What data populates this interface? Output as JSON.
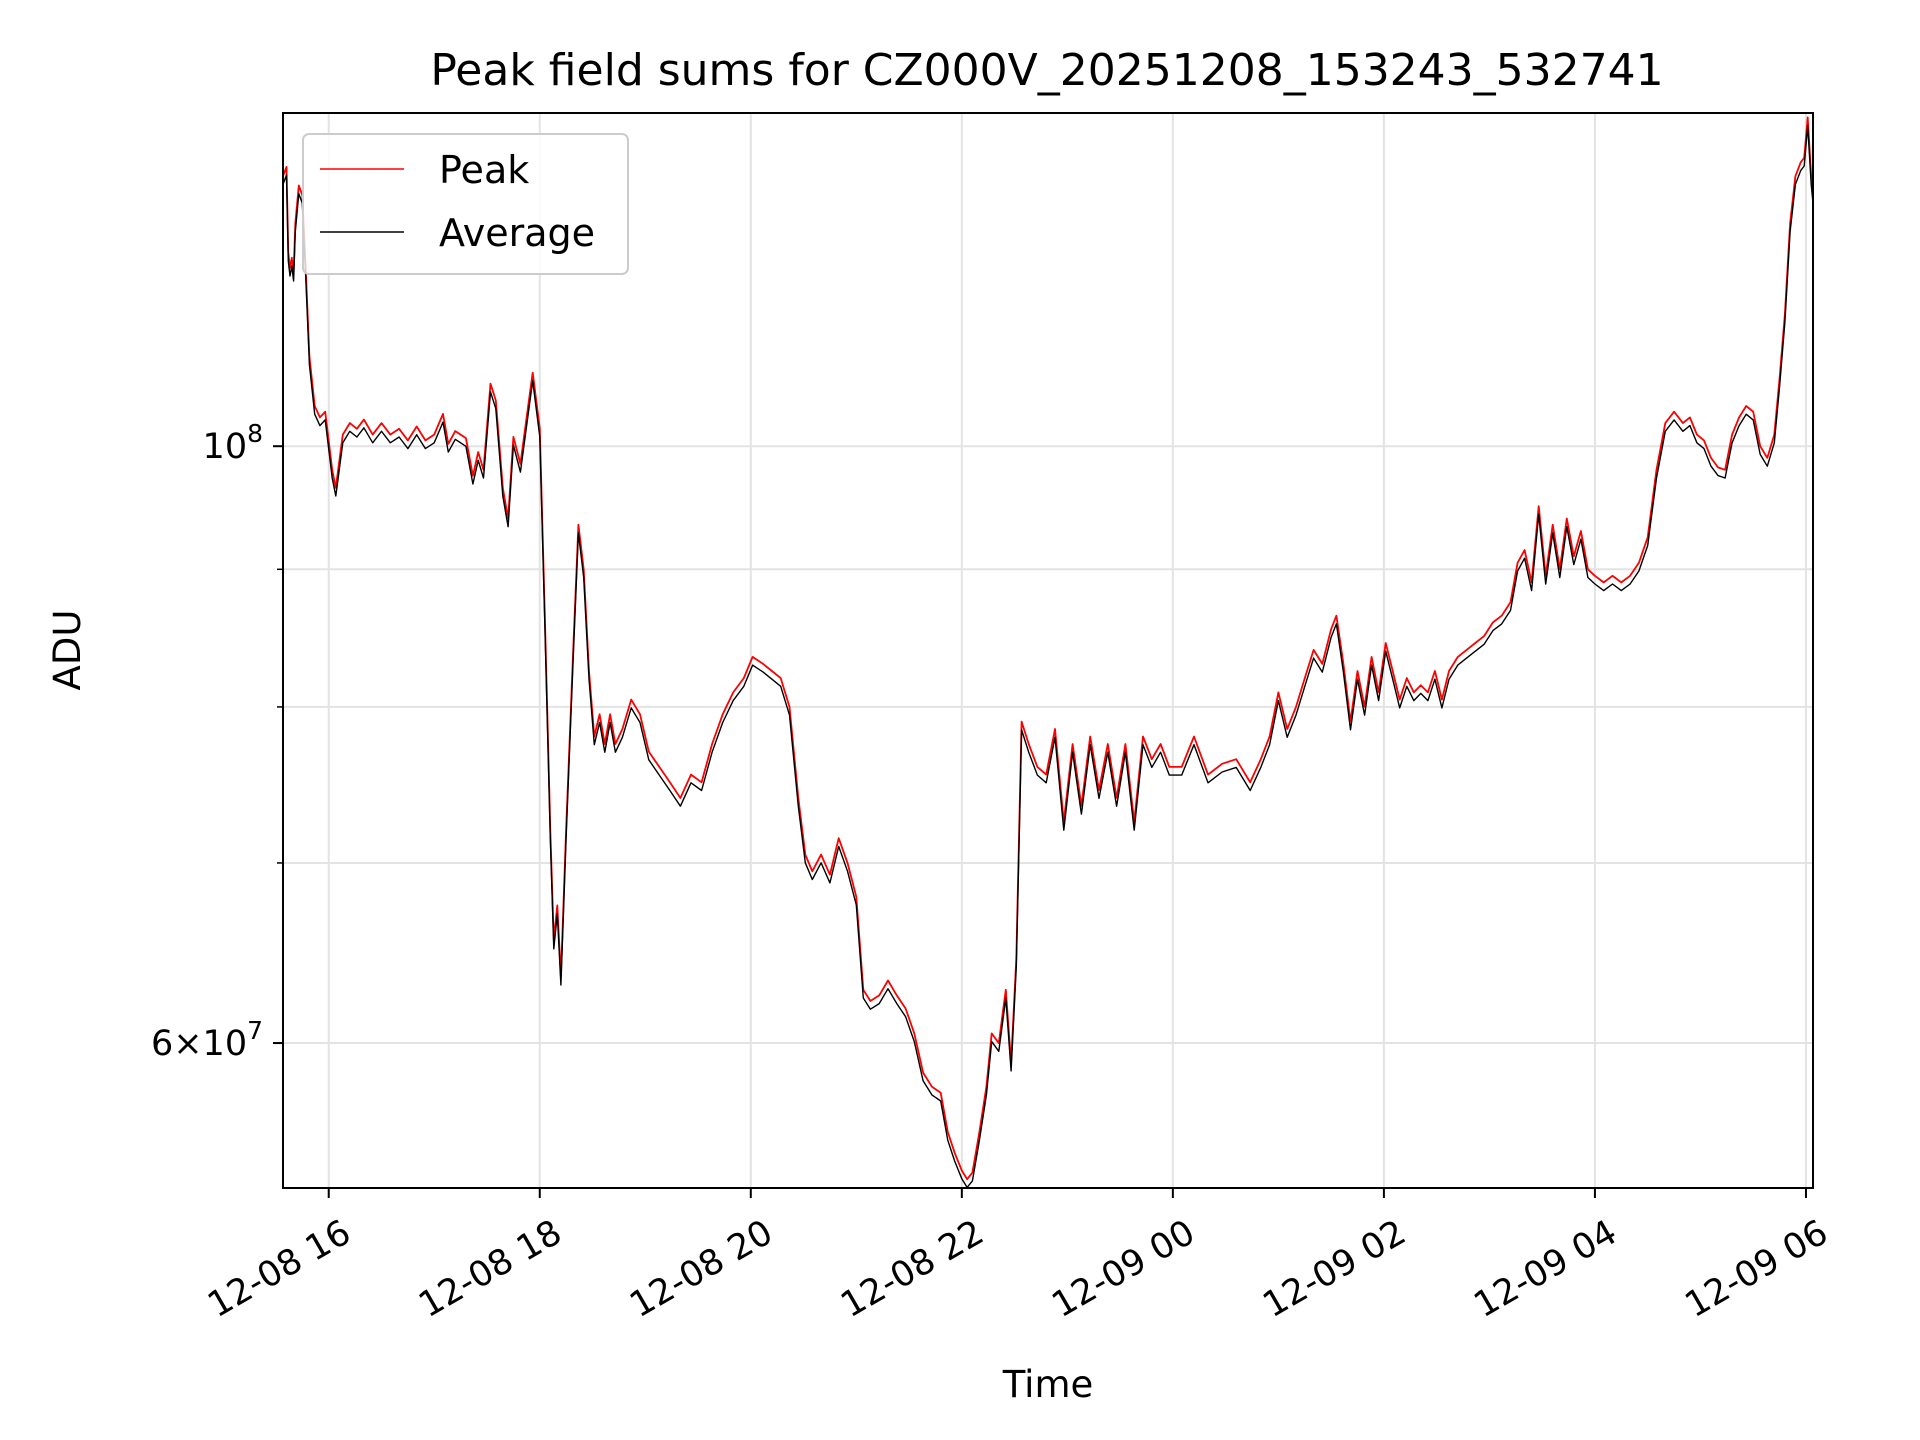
{
  "chart_data": {
    "type": "line",
    "title": "Peak field sums for CZ000V_20251208_153243_532741",
    "xlabel": "Time",
    "ylabel": "ADU",
    "x_scale": "time",
    "y_scale": "log",
    "xlim": [
      "2025-12-08 15:34",
      "2025-12-09 06:04"
    ],
    "ylim": [
      53000000,
      133000000
    ],
    "x_ticks": [
      {
        "value": "2025-12-08 16:00",
        "label": "12-08 16"
      },
      {
        "value": "2025-12-08 18:00",
        "label": "12-08 18"
      },
      {
        "value": "2025-12-08 20:00",
        "label": "12-08 20"
      },
      {
        "value": "2025-12-08 22:00",
        "label": "12-08 22"
      },
      {
        "value": "2025-12-09 00:00",
        "label": "12-09 00"
      },
      {
        "value": "2025-12-09 02:00",
        "label": "12-09 02"
      },
      {
        "value": "2025-12-09 04:00",
        "label": "12-09 04"
      },
      {
        "value": "2025-12-09 06:00",
        "label": "12-09 06"
      }
    ],
    "y_major_ticks": [
      {
        "value": 100000000,
        "base": "10",
        "exp": "8"
      },
      {
        "value": 60000000,
        "mantissa": "6",
        "base": "10",
        "exp": "7"
      }
    ],
    "y_minor_ticks": [
      60000000,
      70000000,
      80000000,
      90000000
    ],
    "grid": true,
    "legend_position": "upper-left",
    "series": [
      {
        "name": "Peak",
        "color": "#ff0000",
        "points": [
          [
            "2025-12-08 15:34",
            126000000
          ],
          [
            "2025-12-08 15:36",
            127000000
          ],
          [
            "2025-12-08 15:37",
            118000000
          ],
          [
            "2025-12-08 15:38",
            116500000
          ],
          [
            "2025-12-08 15:39",
            117500000
          ],
          [
            "2025-12-08 15:40",
            116000000
          ],
          [
            "2025-12-08 15:41",
            121000000
          ],
          [
            "2025-12-08 15:43",
            125000000
          ],
          [
            "2025-12-08 15:45",
            124000000
          ],
          [
            "2025-12-08 15:47",
            116000000
          ],
          [
            "2025-12-08 15:49",
            108000000
          ],
          [
            "2025-12-08 15:52",
            103500000
          ],
          [
            "2025-12-08 15:55",
            102500000
          ],
          [
            "2025-12-08 15:58",
            103000000
          ],
          [
            "2025-12-08 16:02",
            98000000
          ],
          [
            "2025-12-08 16:04",
            96500000
          ],
          [
            "2025-12-08 16:08",
            101000000
          ],
          [
            "2025-12-08 16:12",
            102000000
          ],
          [
            "2025-12-08 16:16",
            101500000
          ],
          [
            "2025-12-08 16:20",
            102300000
          ],
          [
            "2025-12-08 16:25",
            101000000
          ],
          [
            "2025-12-08 16:30",
            102000000
          ],
          [
            "2025-12-08 16:35",
            101000000
          ],
          [
            "2025-12-08 16:40",
            101500000
          ],
          [
            "2025-12-08 16:45",
            100500000
          ],
          [
            "2025-12-08 16:50",
            101700000
          ],
          [
            "2025-12-08 16:55",
            100500000
          ],
          [
            "2025-12-08 17:00",
            101000000
          ],
          [
            "2025-12-08 17:05",
            102800000
          ],
          [
            "2025-12-08 17:08",
            100200000
          ],
          [
            "2025-12-08 17:12",
            101300000
          ],
          [
            "2025-12-08 17:18",
            100700000
          ],
          [
            "2025-12-08 17:22",
            97500000
          ],
          [
            "2025-12-08 17:25",
            99500000
          ],
          [
            "2025-12-08 17:28",
            98000000
          ],
          [
            "2025-12-08 17:32",
            105500000
          ],
          [
            "2025-12-08 17:35",
            104000000
          ],
          [
            "2025-12-08 17:39",
            96500000
          ],
          [
            "2025-12-08 17:42",
            94000000
          ],
          [
            "2025-12-08 17:45",
            100800000
          ],
          [
            "2025-12-08 17:49",
            98500000
          ],
          [
            "2025-12-08 17:53",
            103000000
          ],
          [
            "2025-12-08 17:56",
            106500000
          ],
          [
            "2025-12-08 18:00",
            101500000
          ],
          [
            "2025-12-08 18:03",
            86000000
          ],
          [
            "2025-12-08 18:06",
            72000000
          ],
          [
            "2025-12-08 18:08",
            65500000
          ],
          [
            "2025-12-08 18:10",
            67500000
          ],
          [
            "2025-12-08 18:12",
            63500000
          ],
          [
            "2025-12-08 18:15",
            72000000
          ],
          [
            "2025-12-08 18:19",
            84000000
          ],
          [
            "2025-12-08 18:22",
            93500000
          ],
          [
            "2025-12-08 18:25",
            90000000
          ],
          [
            "2025-12-08 18:28",
            82500000
          ],
          [
            "2025-12-08 18:31",
            78000000
          ],
          [
            "2025-12-08 18:34",
            79500000
          ],
          [
            "2025-12-08 18:37",
            77500000
          ],
          [
            "2025-12-08 18:40",
            79500000
          ],
          [
            "2025-12-08 18:43",
            77500000
          ],
          [
            "2025-12-08 18:47",
            78500000
          ],
          [
            "2025-12-08 18:52",
            80500000
          ],
          [
            "2025-12-08 18:57",
            79500000
          ],
          [
            "2025-12-08 19:02",
            77000000
          ],
          [
            "2025-12-08 19:08",
            76000000
          ],
          [
            "2025-12-08 19:14",
            75000000
          ],
          [
            "2025-12-08 19:20",
            74000000
          ],
          [
            "2025-12-08 19:26",
            75500000
          ],
          [
            "2025-12-08 19:32",
            75000000
          ],
          [
            "2025-12-08 19:38",
            77500000
          ],
          [
            "2025-12-08 19:44",
            79500000
          ],
          [
            "2025-12-08 19:50",
            81000000
          ],
          [
            "2025-12-08 19:56",
            82000000
          ],
          [
            "2025-12-08 20:01",
            83500000
          ],
          [
            "2025-12-08 20:07",
            83000000
          ],
          [
            "2025-12-08 20:12",
            82500000
          ],
          [
            "2025-12-08 20:17",
            82000000
          ],
          [
            "2025-12-08 20:22",
            80000000
          ],
          [
            "2025-12-08 20:27",
            74000000
          ],
          [
            "2025-12-08 20:31",
            70500000
          ],
          [
            "2025-12-08 20:35",
            69500000
          ],
          [
            "2025-12-08 20:40",
            70500000
          ],
          [
            "2025-12-08 20:45",
            69300000
          ],
          [
            "2025-12-08 20:50",
            71500000
          ],
          [
            "2025-12-08 20:55",
            70000000
          ],
          [
            "2025-12-08 21:00",
            68000000
          ],
          [
            "2025-12-08 21:04",
            62800000
          ],
          [
            "2025-12-08 21:08",
            62200000
          ],
          [
            "2025-12-08 21:13",
            62500000
          ],
          [
            "2025-12-08 21:18",
            63300000
          ],
          [
            "2025-12-08 21:23",
            62500000
          ],
          [
            "2025-12-08 21:28",
            61800000
          ],
          [
            "2025-12-08 21:33",
            60500000
          ],
          [
            "2025-12-08 21:38",
            58500000
          ],
          [
            "2025-12-08 21:43",
            57800000
          ],
          [
            "2025-12-08 21:48",
            57500000
          ],
          [
            "2025-12-08 21:52",
            55600000
          ],
          [
            "2025-12-08 21:56",
            54600000
          ],
          [
            "2025-12-08 22:00",
            53800000
          ],
          [
            "2025-12-08 22:03",
            53400000
          ],
          [
            "2025-12-08 22:06",
            53700000
          ],
          [
            "2025-12-08 22:10",
            55600000
          ],
          [
            "2025-12-08 22:14",
            57800000
          ],
          [
            "2025-12-08 22:17",
            60500000
          ],
          [
            "2025-12-08 22:21",
            60000000
          ],
          [
            "2025-12-08 22:25",
            62800000
          ],
          [
            "2025-12-08 22:28",
            59000000
          ],
          [
            "2025-12-08 22:31",
            64500000
          ],
          [
            "2025-12-08 22:34",
            79000000
          ],
          [
            "2025-12-08 22:38",
            77500000
          ],
          [
            "2025-12-08 22:43",
            76000000
          ],
          [
            "2025-12-08 22:48",
            75500000
          ],
          [
            "2025-12-08 22:53",
            78500000
          ],
          [
            "2025-12-08 22:58",
            72500000
          ],
          [
            "2025-12-08 23:03",
            77500000
          ],
          [
            "2025-12-08 23:08",
            73500000
          ],
          [
            "2025-12-08 23:13",
            78000000
          ],
          [
            "2025-12-08 23:18",
            74500000
          ],
          [
            "2025-12-08 23:23",
            77500000
          ],
          [
            "2025-12-08 23:28",
            74000000
          ],
          [
            "2025-12-08 23:33",
            77500000
          ],
          [
            "2025-12-08 23:38",
            72500000
          ],
          [
            "2025-12-08 23:43",
            78000000
          ],
          [
            "2025-12-08 23:48",
            76500000
          ],
          [
            "2025-12-08 23:53",
            77500000
          ],
          [
            "2025-12-08 23:58",
            76000000
          ],
          [
            "2025-12-09 00:05",
            76000000
          ],
          [
            "2025-12-09 00:12",
            78000000
          ],
          [
            "2025-12-09 00:20",
            75500000
          ],
          [
            "2025-12-09 00:28",
            76200000
          ],
          [
            "2025-12-09 00:36",
            76500000
          ],
          [
            "2025-12-09 00:44",
            75000000
          ],
          [
            "2025-12-09 00:50",
            76500000
          ],
          [
            "2025-12-09 00:55",
            78000000
          ],
          [
            "2025-12-09 01:00",
            81000000
          ],
          [
            "2025-12-09 01:05",
            78500000
          ],
          [
            "2025-12-09 01:10",
            80000000
          ],
          [
            "2025-12-09 01:15",
            82000000
          ],
          [
            "2025-12-09 01:20",
            84000000
          ],
          [
            "2025-12-09 01:25",
            83000000
          ],
          [
            "2025-12-09 01:30",
            85500000
          ],
          [
            "2025-12-09 01:33",
            86500000
          ],
          [
            "2025-12-09 01:37",
            83000000
          ],
          [
            "2025-12-09 01:41",
            79000000
          ],
          [
            "2025-12-09 01:45",
            82500000
          ],
          [
            "2025-12-09 01:49",
            80000000
          ],
          [
            "2025-12-09 01:53",
            83500000
          ],
          [
            "2025-12-09 01:57",
            81000000
          ],
          [
            "2025-12-09 02:01",
            84500000
          ],
          [
            "2025-12-09 02:05",
            82500000
          ],
          [
            "2025-12-09 02:09",
            80500000
          ],
          [
            "2025-12-09 02:13",
            82000000
          ],
          [
            "2025-12-09 02:17",
            81000000
          ],
          [
            "2025-12-09 02:21",
            81500000
          ],
          [
            "2025-12-09 02:25",
            81000000
          ],
          [
            "2025-12-09 02:29",
            82500000
          ],
          [
            "2025-12-09 02:33",
            80500000
          ],
          [
            "2025-12-09 02:37",
            82500000
          ],
          [
            "2025-12-09 02:42",
            83500000
          ],
          [
            "2025-12-09 02:47",
            84000000
          ],
          [
            "2025-12-09 02:52",
            84500000
          ],
          [
            "2025-12-09 02:57",
            85000000
          ],
          [
            "2025-12-09 03:02",
            86000000
          ],
          [
            "2025-12-09 03:07",
            86500000
          ],
          [
            "2025-12-09 03:12",
            87500000
          ],
          [
            "2025-12-09 03:16",
            90500000
          ],
          [
            "2025-12-09 03:20",
            91500000
          ],
          [
            "2025-12-09 03:24",
            89000000
          ],
          [
            "2025-12-09 03:28",
            95000000
          ],
          [
            "2025-12-09 03:32",
            89500000
          ],
          [
            "2025-12-09 03:36",
            93500000
          ],
          [
            "2025-12-09 03:40",
            90000000
          ],
          [
            "2025-12-09 03:44",
            94000000
          ],
          [
            "2025-12-09 03:48",
            91000000
          ],
          [
            "2025-12-09 03:52",
            93000000
          ],
          [
            "2025-12-09 03:56",
            90000000
          ],
          [
            "2025-12-09 04:00",
            89500000
          ],
          [
            "2025-12-09 04:05",
            89000000
          ],
          [
            "2025-12-09 04:10",
            89500000
          ],
          [
            "2025-12-09 04:15",
            89000000
          ],
          [
            "2025-12-09 04:20",
            89500000
          ],
          [
            "2025-12-09 04:25",
            90500000
          ],
          [
            "2025-12-09 04:30",
            92500000
          ],
          [
            "2025-12-09 04:35",
            98000000
          ],
          [
            "2025-12-09 04:40",
            102000000
          ],
          [
            "2025-12-09 04:45",
            103000000
          ],
          [
            "2025-12-09 04:50",
            102000000
          ],
          [
            "2025-12-09 04:54",
            102500000
          ],
          [
            "2025-12-09 04:58",
            101000000
          ],
          [
            "2025-12-09 05:02",
            100500000
          ],
          [
            "2025-12-09 05:06",
            99000000
          ],
          [
            "2025-12-09 05:10",
            98200000
          ],
          [
            "2025-12-09 05:14",
            98000000
          ],
          [
            "2025-12-09 05:18",
            101000000
          ],
          [
            "2025-12-09 05:22",
            102500000
          ],
          [
            "2025-12-09 05:26",
            103500000
          ],
          [
            "2025-12-09 05:30",
            103000000
          ],
          [
            "2025-12-09 05:34",
            100000000
          ],
          [
            "2025-12-09 05:38",
            99000000
          ],
          [
            "2025-12-09 05:42",
            101000000
          ],
          [
            "2025-12-09 05:45",
            106000000
          ],
          [
            "2025-12-09 05:48",
            112000000
          ],
          [
            "2025-12-09 05:51",
            121000000
          ],
          [
            "2025-12-09 05:54",
            126000000
          ],
          [
            "2025-12-09 05:57",
            127500000
          ],
          [
            "2025-12-09 05:59",
            128000000
          ],
          [
            "2025-12-09 06:01",
            132500000
          ],
          [
            "2025-12-09 06:03",
            126000000
          ],
          [
            "2025-12-09 06:04",
            124000000
          ]
        ]
      },
      {
        "name": "Average",
        "color": "#000000",
        "same_x_as": "Peak",
        "ratio_to_peak": 0.993
      }
    ]
  },
  "legend": {
    "items": [
      {
        "label": "Peak",
        "color": "#ff0000"
      },
      {
        "label": "Average",
        "color": "#000000"
      }
    ]
  }
}
